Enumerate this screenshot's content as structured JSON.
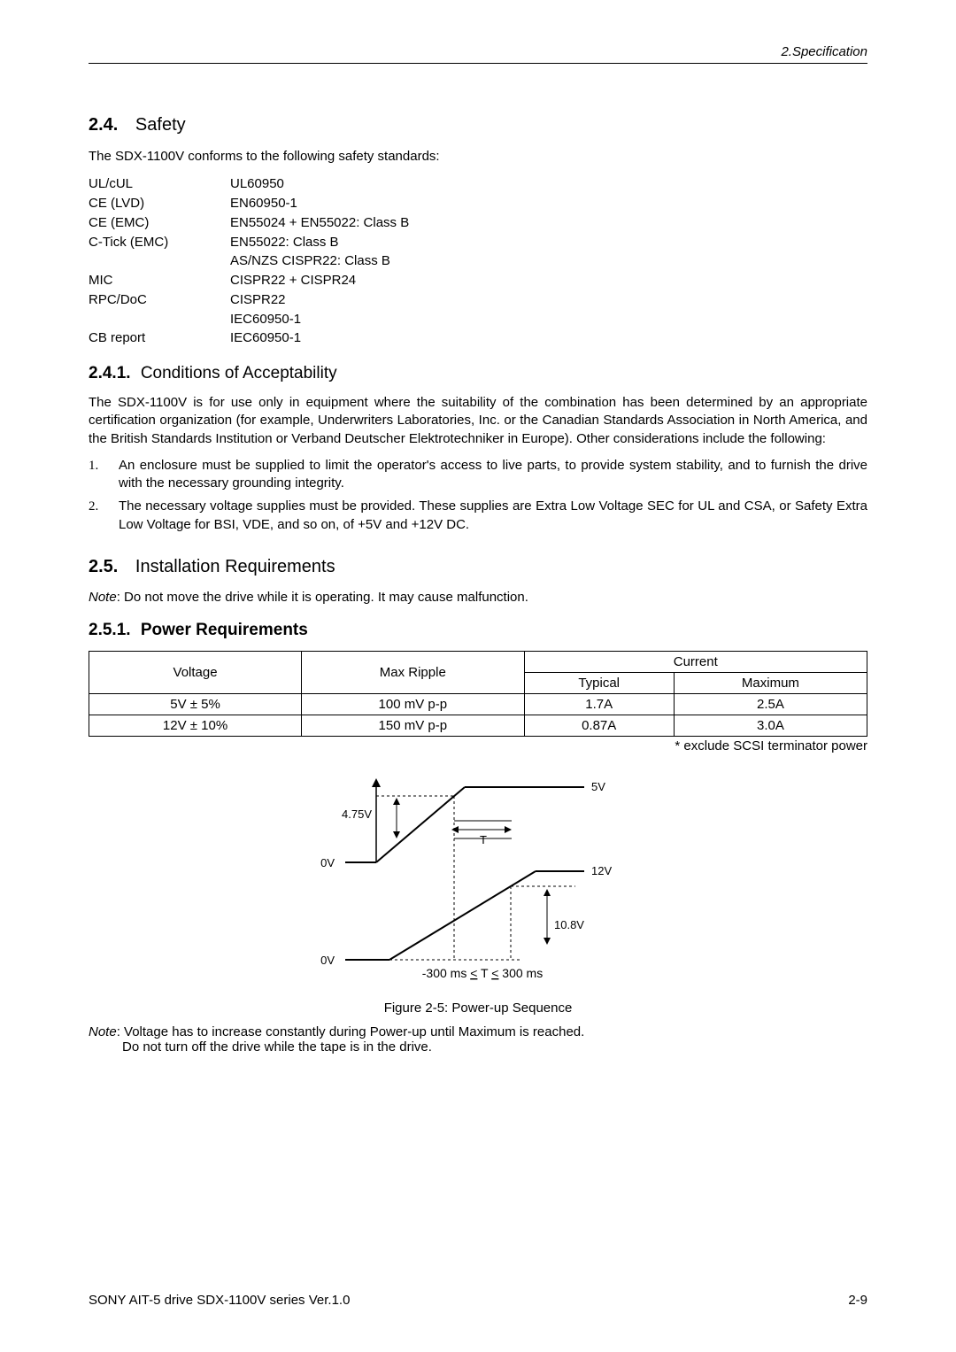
{
  "header": {
    "chapter": "2.Specification"
  },
  "s24": {
    "num": "2.4.",
    "title": "Safety",
    "intro": "The SDX-1100V conforms to the following safety standards:",
    "rows": [
      {
        "label": "UL/cUL",
        "val": "UL60950"
      },
      {
        "label": "CE (LVD)",
        "val": "EN60950-1"
      },
      {
        "label": "CE (EMC)",
        "val": "EN55024 + EN55022: Class B"
      },
      {
        "label": "C-Tick (EMC)",
        "val": "EN55022: Class B"
      },
      {
        "label": "",
        "val": "AS/NZS CISPR22: Class B"
      },
      {
        "label": "MIC",
        "val": "CISPR22 + CISPR24"
      },
      {
        "label": "RPC/DoC",
        "val": "CISPR22"
      },
      {
        "label": "",
        "val": "IEC60950-1"
      },
      {
        "label": "CB report",
        "val": "IEC60950-1"
      }
    ]
  },
  "s241": {
    "num": "2.4.1.",
    "title": "Conditions of Acceptability",
    "para": "The SDX-1100V is for use only in equipment where the suitability of the combination has been determined by an appropriate certification organization (for example, Underwriters Laboratories, Inc. or the Canadian Standards Association in North America, and the British Standards Institution or Verband Deutscher Elektrotechniker in Europe). Other considerations include the following:",
    "items": [
      "An enclosure must be supplied to limit the operator's access to live parts, to provide system stability, and to furnish the drive with the necessary grounding integrity.",
      "The necessary voltage supplies must be provided. These supplies are Extra Low Voltage SEC for UL and CSA, or Safety Extra Low Voltage for BSI, VDE, and so on, of +5V and +12V DC."
    ]
  },
  "s25": {
    "num": "2.5.",
    "title": "Installation Requirements",
    "note_label": "Note",
    "note": ": Do not move the drive while it is operating. It may cause malfunction."
  },
  "s251": {
    "num": "2.5.1.",
    "title": "Power Requirements",
    "table": {
      "headers": {
        "voltage": "Voltage",
        "ripple": "Max Ripple",
        "current": "Current",
        "typical": "Typical",
        "maximum": "Maximum"
      },
      "rows": [
        {
          "voltage": "5V ± 5%",
          "ripple": "100 mV p-p",
          "typical": "1.7A",
          "maximum": "2.5A"
        },
        {
          "voltage": "12V ± 10%",
          "ripple": "150 mV p-p",
          "typical": "0.87A",
          "maximum": "3.0A"
        }
      ],
      "footnote": "* exclude SCSI terminator power"
    },
    "figure": {
      "caption": "Figure 2-5: Power-up Sequence",
      "labels": {
        "v5": "5V",
        "v475": "4.75V",
        "zero1": "0V",
        "zero2": "0V",
        "v12": "12V",
        "v108": "10.8V",
        "t": "T",
        "range": "-300 ms < T < 300 ms"
      },
      "colors": {
        "stroke": "#000000",
        "dash": "#000000"
      }
    },
    "bottom_note_label": "Note",
    "bottom_note_l1": ": Voltage has to increase constantly during Power-up until Maximum is reached.",
    "bottom_note_l2": "Do not turn off the drive while the tape is in the drive."
  },
  "footer": {
    "left": "SONY AIT-5 drive SDX-1100V series Ver.1.0",
    "right": "2-9"
  }
}
